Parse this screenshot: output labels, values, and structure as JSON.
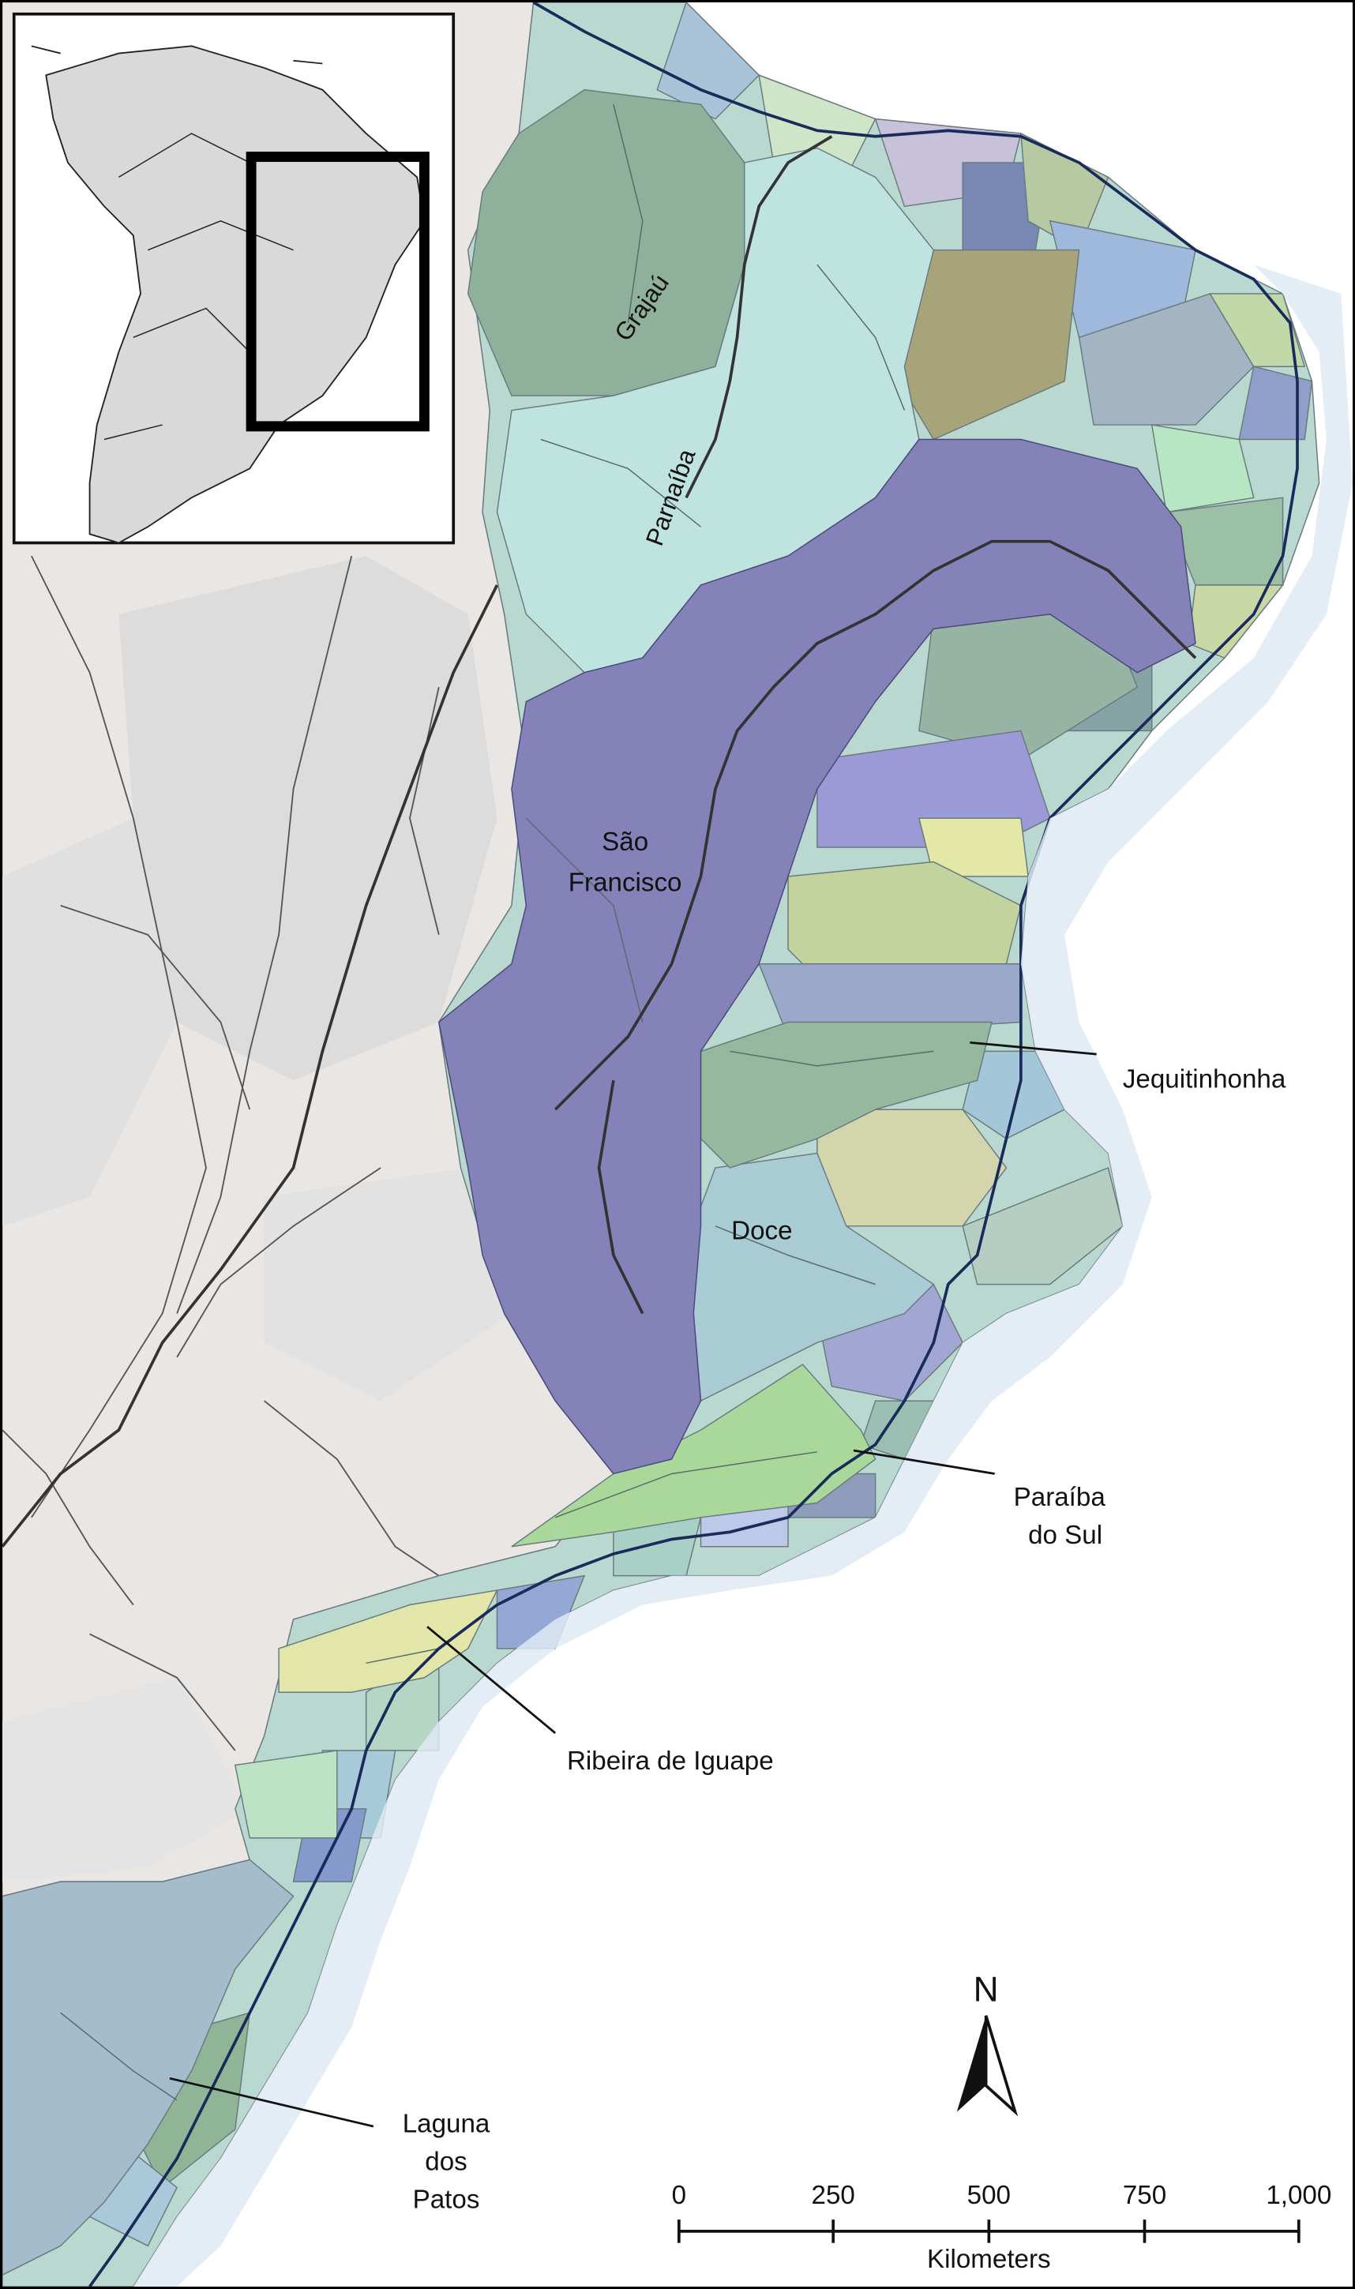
{
  "map": {
    "labels": {
      "grajau": "Grajaú",
      "parnaiba": "Parnaíba",
      "sao_francisco_line1": "São",
      "sao_francisco_line2": "Francisco",
      "doce": "Doce",
      "jequitinhonha": "Jequitinhonha",
      "paraiba_do_sul_line1": "Paraíba",
      "paraiba_do_sul_line2": "do Sul",
      "ribeira": "Ribeira de Iguape",
      "laguna_line1": "Laguna",
      "laguna_line2": "dos",
      "laguna_line3": "Patos"
    },
    "north_arrow": {
      "label": "N",
      "icon": "north-arrow-icon"
    },
    "scale_bar": {
      "ticks": [
        "0",
        "250",
        "500",
        "750",
        "1,000"
      ],
      "unit": "Kilometers"
    },
    "colors": {
      "outside_land": "#e9e6e4",
      "sao_francisco": "#8482b8",
      "parnaiba": "#bfe3df",
      "grajau": "#8fb09a",
      "doce": "#a9cbd4",
      "jequitinhonha": "#95b89e",
      "paraiba_do_sul": "#a9d89a",
      "ribeira": "#e2e6a8",
      "laguna_dos_patos": "#a4bccb",
      "coastline": "#1a2a5a"
    },
    "inset": {
      "icon": "south-america-locator-map"
    }
  }
}
